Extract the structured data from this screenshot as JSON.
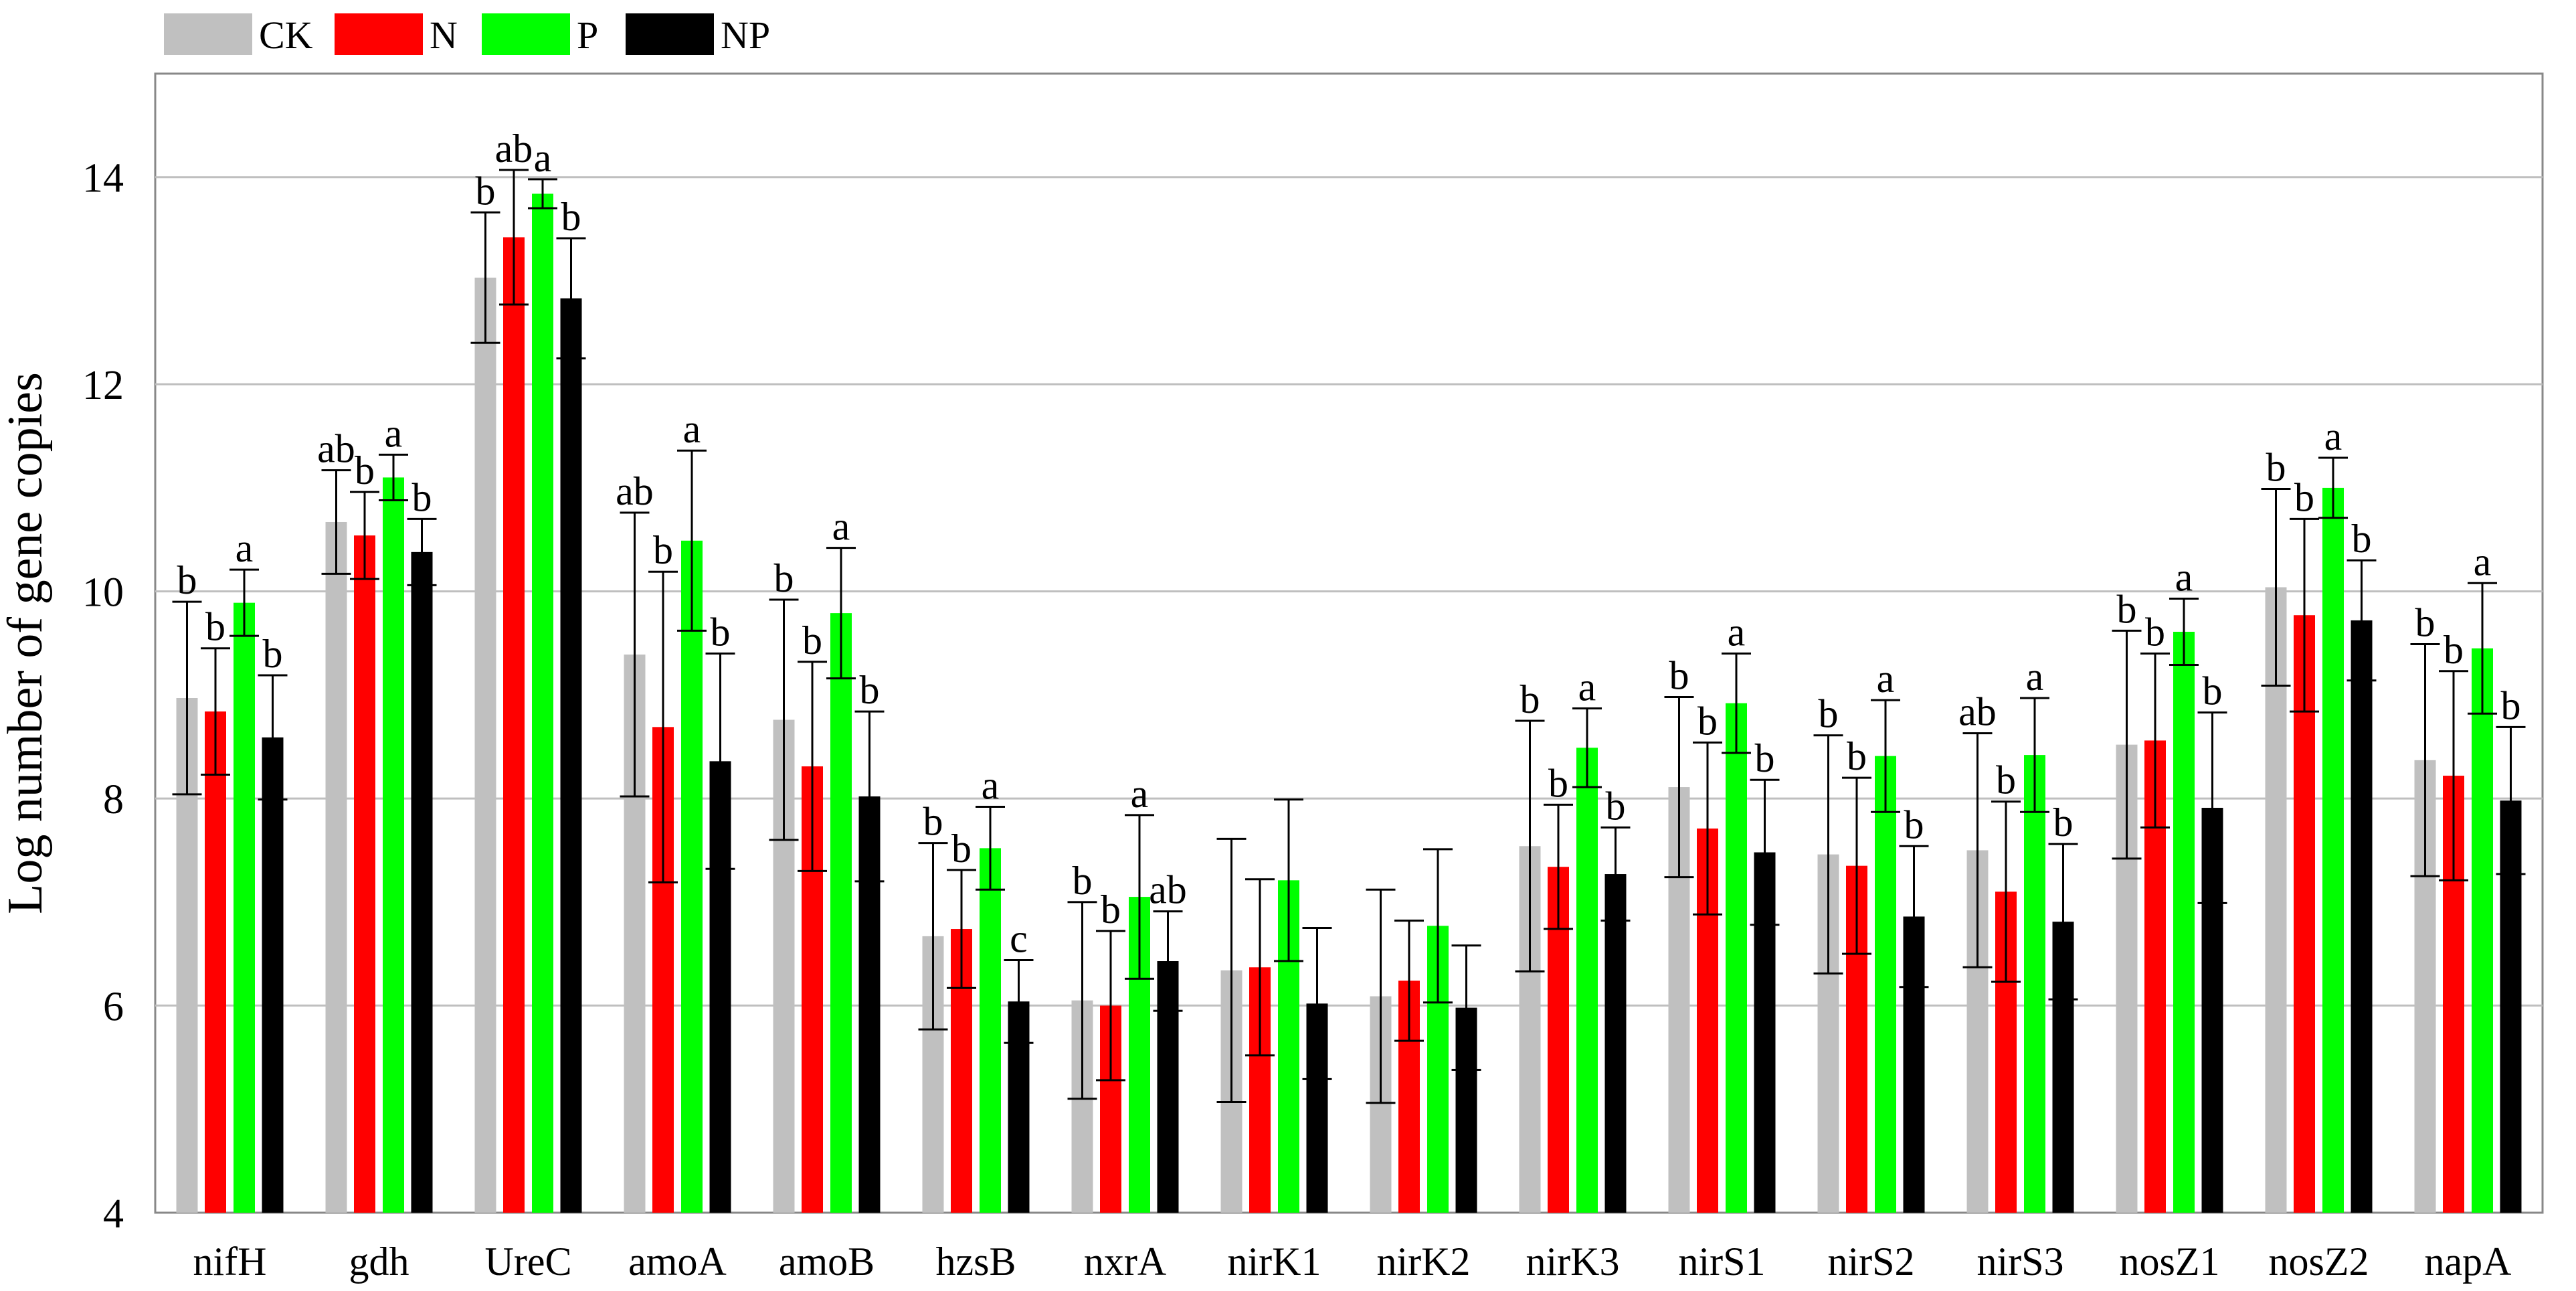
{
  "chart_data": {
    "type": "bar",
    "title": "",
    "xlabel": "",
    "ylabel": "Log number of gene copies",
    "ylim": [
      4,
      15
    ],
    "yticks": [
      4,
      6,
      8,
      10,
      12,
      14
    ],
    "grid": "horizontal",
    "legend_position": "top-left",
    "categories": [
      "nifH",
      "gdh",
      "UreC",
      "amoA",
      "amoB",
      "hzsB",
      "nxrA",
      "nirK1",
      "nirK2",
      "nirK3",
      "nirS1",
      "nirS2",
      "nirS3",
      "nosZ1",
      "nosZ2",
      "napA"
    ],
    "series": [
      {
        "name": "CK",
        "color": "#c0c0c0",
        "values": [
          8.97,
          10.67,
          13.03,
          9.39,
          8.76,
          6.67,
          6.05,
          6.34,
          6.09,
          7.54,
          8.11,
          7.46,
          7.5,
          8.52,
          10.04,
          8.37
        ],
        "errors": [
          0.93,
          0.5,
          0.63,
          1.37,
          1.16,
          0.9,
          0.95,
          1.27,
          1.03,
          1.21,
          0.87,
          1.15,
          1.13,
          1.1,
          0.95,
          1.12
        ],
        "letters": [
          "b",
          "ab",
          "b",
          "ab",
          "b",
          "b",
          "b",
          "",
          "",
          "b",
          "b",
          "b",
          "ab",
          "b",
          "b",
          "b"
        ]
      },
      {
        "name": "N",
        "color": "#ff0000",
        "values": [
          8.84,
          10.54,
          13.42,
          8.69,
          8.31,
          6.74,
          6.0,
          6.37,
          6.24,
          7.34,
          7.71,
          7.35,
          7.1,
          8.56,
          9.77,
          8.22
        ],
        "errors": [
          0.61,
          0.42,
          0.65,
          1.5,
          1.01,
          0.57,
          0.72,
          0.85,
          0.58,
          0.6,
          0.83,
          0.85,
          0.87,
          0.84,
          0.93,
          1.01
        ],
        "letters": [
          "b",
          "b",
          "ab",
          "b",
          "b",
          "b",
          "b",
          "",
          "",
          "b",
          "b",
          "b",
          "b",
          "b",
          "b",
          "b"
        ]
      },
      {
        "name": "P",
        "color": "#00ff00",
        "values": [
          9.89,
          11.1,
          13.84,
          10.49,
          9.79,
          7.52,
          7.05,
          7.21,
          6.77,
          8.49,
          8.92,
          8.41,
          8.42,
          9.61,
          11.0,
          9.45
        ],
        "errors": [
          0.32,
          0.22,
          0.14,
          0.87,
          0.63,
          0.4,
          0.79,
          0.78,
          0.74,
          0.38,
          0.48,
          0.54,
          0.55,
          0.32,
          0.29,
          0.63
        ],
        "letters": [
          "a",
          "a",
          "a",
          "a",
          "a",
          "a",
          "a",
          "",
          "",
          "a",
          "a",
          "a",
          "a",
          "a",
          "a",
          "a"
        ]
      },
      {
        "name": "NP",
        "color": "#000000",
        "values": [
          8.59,
          10.38,
          12.83,
          8.36,
          8.02,
          6.04,
          6.43,
          6.02,
          5.98,
          7.27,
          7.48,
          6.86,
          6.81,
          7.91,
          9.72,
          7.98
        ],
        "errors": [
          0.6,
          0.32,
          0.58,
          1.04,
          0.82,
          0.4,
          0.48,
          0.73,
          0.6,
          0.45,
          0.7,
          0.68,
          0.75,
          0.92,
          0.58,
          0.71
        ],
        "letters": [
          "b",
          "b",
          "b",
          "b",
          "b",
          "c",
          "ab",
          "",
          "",
          "b",
          "b",
          "b",
          "b",
          "b",
          "b",
          "b"
        ]
      }
    ]
  }
}
